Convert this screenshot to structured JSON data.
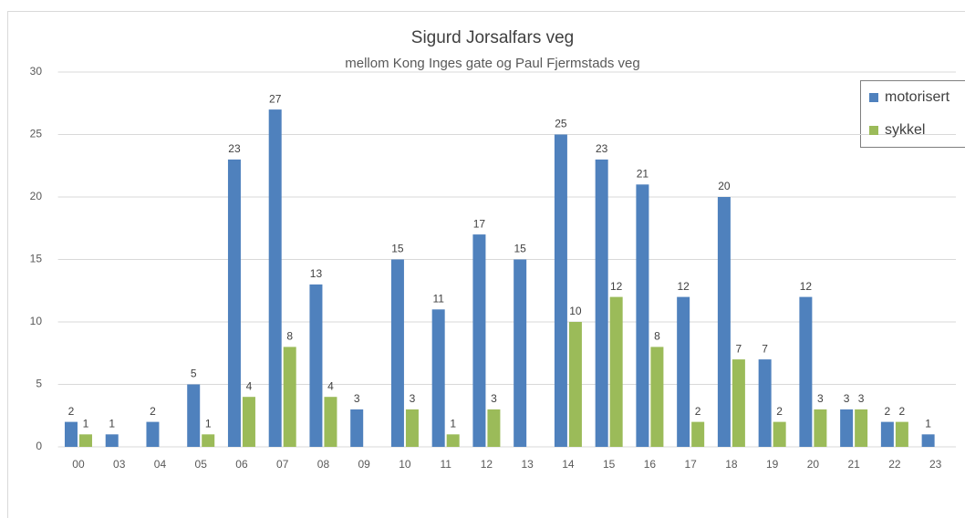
{
  "chart_data": {
    "type": "bar",
    "title": "Sigurd Jorsalfars veg",
    "subtitle": "mellom Kong Inges gate og Paul Fjermstads veg",
    "categories": [
      "00",
      "03",
      "04",
      "05",
      "06",
      "07",
      "08",
      "09",
      "10",
      "11",
      "12",
      "13",
      "14",
      "15",
      "16",
      "17",
      "18",
      "19",
      "20",
      "21",
      "22",
      "23"
    ],
    "series": [
      {
        "name": "motorisert",
        "color": "#4f81bd",
        "values": [
          2,
          1,
          2,
          5,
          23,
          27,
          13,
          3,
          15,
          11,
          17,
          15,
          25,
          23,
          21,
          12,
          20,
          7,
          12,
          3,
          2,
          1
        ]
      },
      {
        "name": "sykkel",
        "color": "#9bbb59",
        "values": [
          1,
          null,
          null,
          1,
          4,
          8,
          4,
          null,
          3,
          1,
          3,
          null,
          10,
          12,
          8,
          2,
          7,
          2,
          3,
          3,
          2,
          null
        ]
      }
    ],
    "ylim": [
      0,
      30
    ],
    "yticks": [
      0,
      5,
      10,
      15,
      20,
      25,
      30
    ],
    "grid": true,
    "legend": "top-right"
  }
}
